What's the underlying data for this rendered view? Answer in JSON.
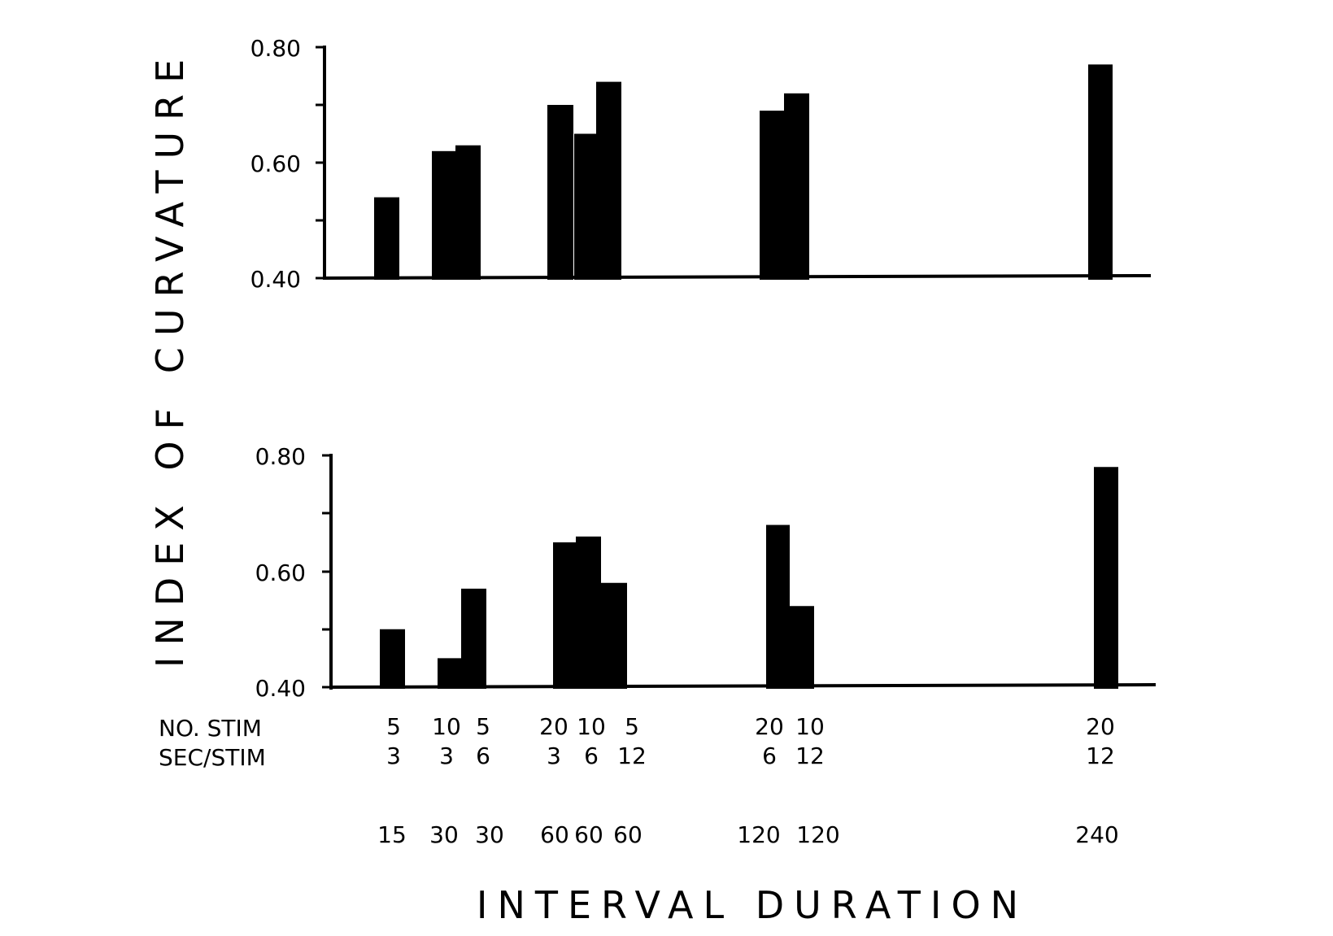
{
  "chart_data": [
    {
      "type": "bar",
      "panel": "top",
      "categories": [
        "15",
        "30",
        "30",
        "60",
        "60",
        "60",
        "120",
        "120",
        "240"
      ],
      "values": [
        0.54,
        0.62,
        0.63,
        0.7,
        0.65,
        0.74,
        0.69,
        0.72,
        0.77
      ],
      "ylim": [
        0.4,
        0.8
      ],
      "yticks": [
        "0.80",
        "0.60",
        "0.40"
      ]
    },
    {
      "type": "bar",
      "panel": "bottom",
      "categories": [
        "15",
        "30",
        "30",
        "60",
        "60",
        "60",
        "120",
        "120",
        "240"
      ],
      "values": [
        0.5,
        0.45,
        0.57,
        0.65,
        0.66,
        0.58,
        0.68,
        0.54,
        0.78
      ],
      "ylim": [
        0.4,
        0.8
      ],
      "yticks": [
        "0.80",
        "0.60",
        "0.40"
      ]
    }
  ],
  "ylabel": "INDEX OF CURVATURE",
  "xlabel": "INTERVAL DURATION",
  "conditions": {
    "no_stim_label": "NO. STIM",
    "sec_stim_label": "SEC/STIM",
    "no_stim": [
      "5",
      "10",
      "5",
      "20",
      "10",
      "5",
      "20",
      "10",
      "20"
    ],
    "sec_stim": [
      "3",
      "3",
      "6",
      "3",
      "6",
      "12",
      "6",
      "12",
      "12"
    ],
    "durations": [
      "15",
      "30",
      "30",
      "60",
      "60",
      "60",
      "120",
      "120",
      "240"
    ]
  },
  "colors": {
    "bar": "#000000",
    "axis": "#000000",
    "background": "#ffffff"
  }
}
